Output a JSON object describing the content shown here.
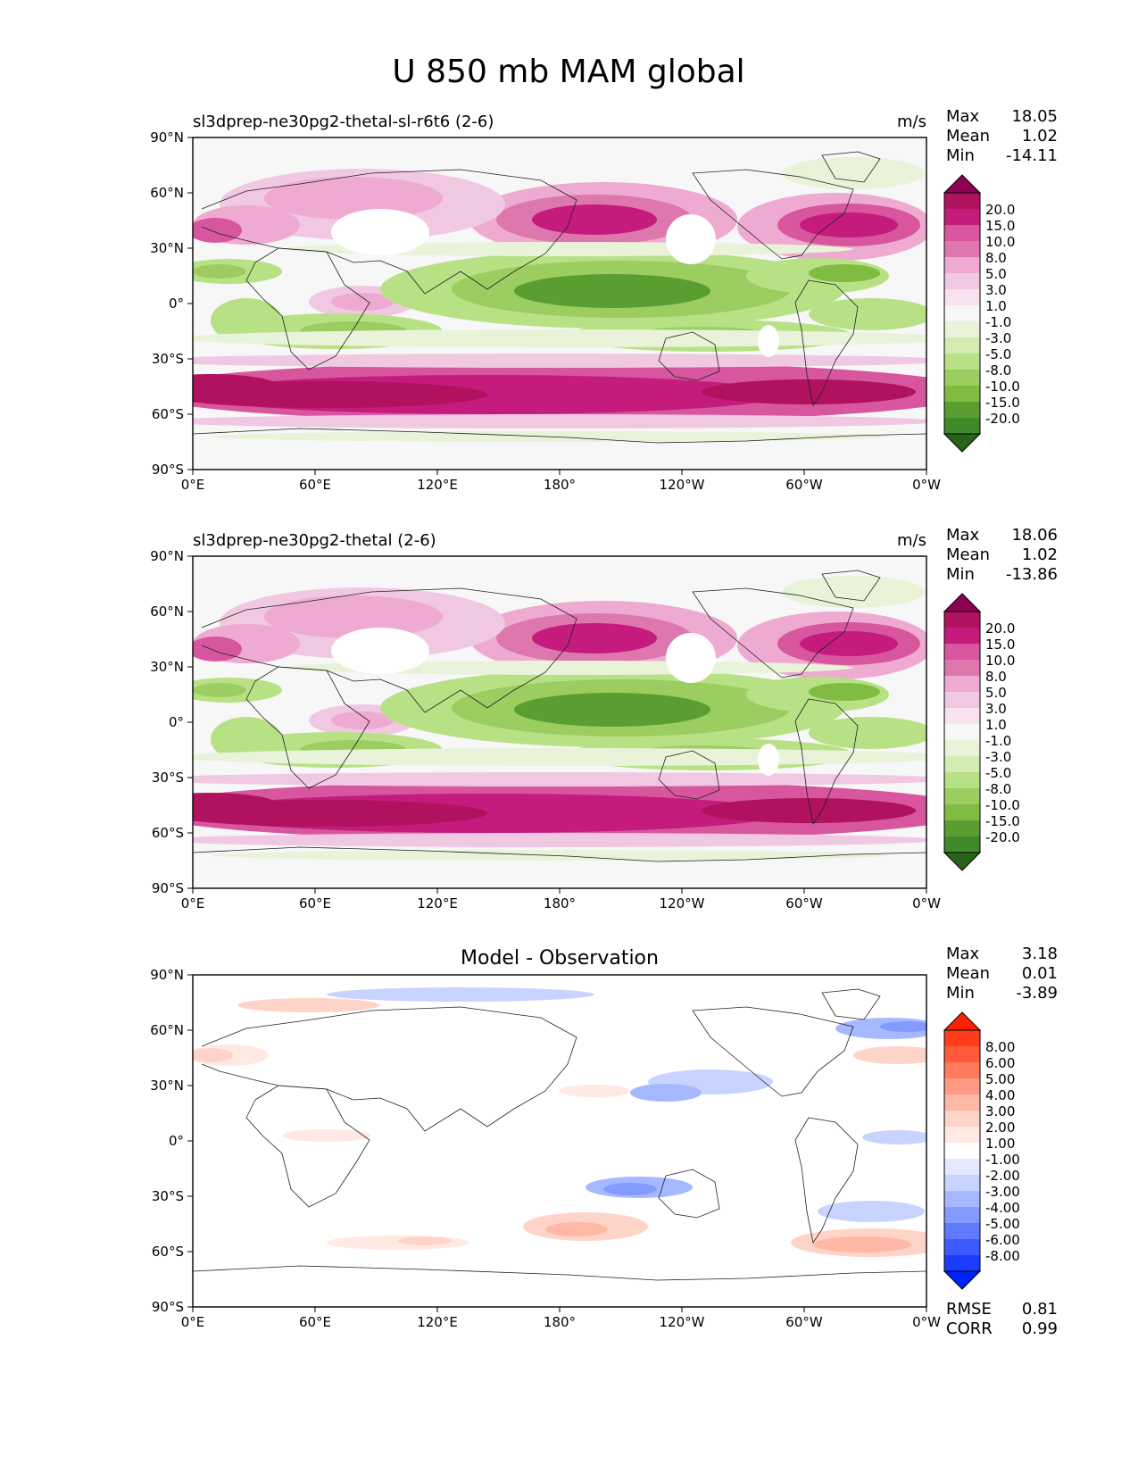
{
  "figure": {
    "title": "U 850 mb MAM global"
  },
  "panels": [
    {
      "id": "test",
      "left_title": "sl3dprep-ne30pg2-thetal-sl-r6t6 (2-6)",
      "center_title": "",
      "units": "m/s",
      "stats": {
        "labels": [
          "Max",
          "Mean",
          "Min"
        ],
        "values": [
          "18.05",
          "1.02",
          "-14.11"
        ]
      },
      "colorbar": "prgn",
      "diff": false
    },
    {
      "id": "reference",
      "left_title": "sl3dprep-ne30pg2-thetal (2-6)",
      "center_title": "",
      "units": "m/s",
      "stats": {
        "labels": [
          "Max",
          "Mean",
          "Min"
        ],
        "values": [
          "18.06",
          "1.02",
          "-13.86"
        ]
      },
      "colorbar": "prgn",
      "diff": false
    },
    {
      "id": "difference",
      "left_title": "",
      "center_title": "Model - Observation",
      "units": "",
      "stats": {
        "labels": [
          "Max",
          "Mean",
          "Min"
        ],
        "values": [
          "3.18",
          "0.01",
          "-3.89"
        ]
      },
      "extra_stats": {
        "labels": [
          "RMSE",
          "CORR"
        ],
        "values": [
          "0.81",
          "0.99"
        ]
      },
      "colorbar": "diff",
      "diff": true
    }
  ],
  "axes": {
    "xticks": [
      "0°E",
      "60°E",
      "120°E",
      "180°",
      "120°W",
      "60°W",
      "0°W"
    ],
    "yticks": [
      "90°N",
      "60°N",
      "30°N",
      "0°",
      "30°S",
      "60°S",
      "90°S"
    ]
  },
  "colorbars": {
    "prgn": {
      "labels": [
        "20.0",
        "15.0",
        "10.0",
        "8.0",
        "5.0",
        "3.0",
        "1.0",
        "-1.0",
        "-3.0",
        "-5.0",
        "-8.0",
        "-10.0",
        "-15.0",
        "-20.0"
      ],
      "colors": [
        "#8e0152",
        "#b0125f",
        "#c51b7d",
        "#d7569e",
        "#de77ae",
        "#eeaad0",
        "#f1c8e2",
        "#f8e2ef",
        "#f7f7f7",
        "#e8f3d9",
        "#d2ecb4",
        "#b8e186",
        "#9ccd61",
        "#7fbc41",
        "#5a9e32",
        "#3f8a2a",
        "#276419"
      ]
    },
    "diff": {
      "labels": [
        "8.00",
        "6.00",
        "5.00",
        "4.00",
        "3.00",
        "2.00",
        "1.00",
        "-1.00",
        "-2.00",
        "-3.00",
        "-4.00",
        "-5.00",
        "-6.00",
        "-8.00"
      ],
      "colors": [
        "#ff2200",
        "#ff3d1a",
        "#ff5a3c",
        "#ff7a5e",
        "#ff9a84",
        "#ffb8a6",
        "#ffd4c8",
        "#ffe9e2",
        "#ffffff",
        "#e2e9ff",
        "#c8d4ff",
        "#a6b8ff",
        "#849aff",
        "#5e7aff",
        "#3c5aff",
        "#1a3dff",
        "#0022ff"
      ]
    }
  }
}
